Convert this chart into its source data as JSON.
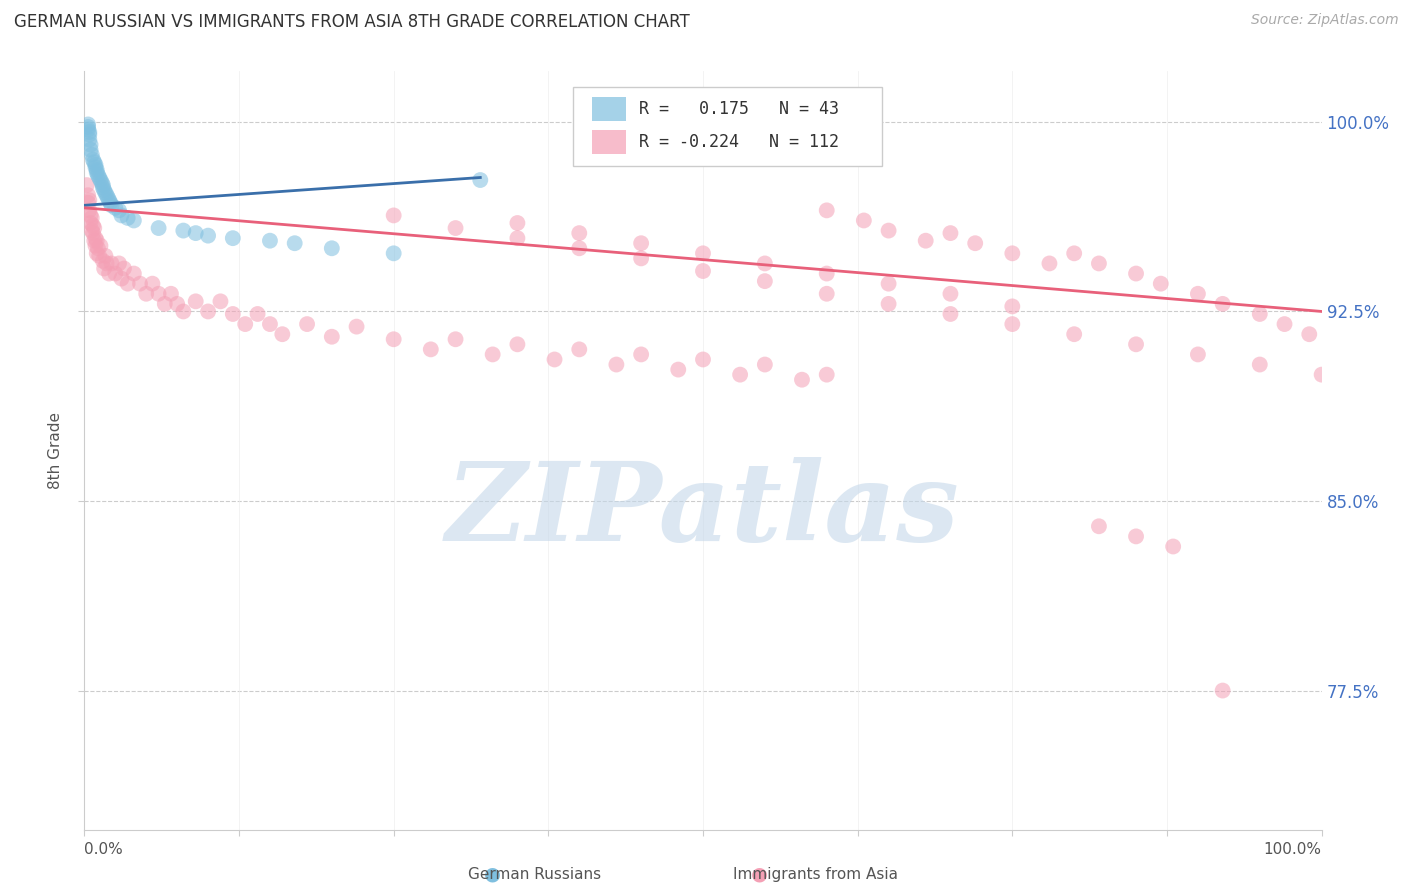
{
  "title": "GERMAN RUSSIAN VS IMMIGRANTS FROM ASIA 8TH GRADE CORRELATION CHART",
  "source": "Source: ZipAtlas.com",
  "ylabel": "8th Grade",
  "ytick_labels": [
    "77.5%",
    "85.0%",
    "92.5%",
    "100.0%"
  ],
  "ytick_values": [
    0.775,
    0.85,
    0.925,
    1.0
  ],
  "xmin": 0.0,
  "xmax": 1.0,
  "ymin": 0.72,
  "ymax": 1.02,
  "blue_color": "#7fbfdf",
  "pink_color": "#f4a0b5",
  "blue_line_color": "#3a6faa",
  "pink_line_color": "#e8607a",
  "blue_N": 43,
  "pink_N": 112,
  "blue_R": 0.175,
  "pink_R": -0.224,
  "watermark_text": "ZIPatlas",
  "watermark_color": "#c5d8ea",
  "legend_label_blue": "German Russians",
  "legend_label_pink": "Immigrants from Asia",
  "blue_line_x": [
    0.0,
    0.32
  ],
  "blue_line_y": [
    0.967,
    0.978
  ],
  "pink_line_x": [
    0.0,
    1.0
  ],
  "pink_line_y": [
    0.966,
    0.925
  ],
  "blue_x": [
    0.003,
    0.003,
    0.003,
    0.004,
    0.004,
    0.004,
    0.005,
    0.005,
    0.006,
    0.007,
    0.008,
    0.009,
    0.009,
    0.01,
    0.01,
    0.011,
    0.012,
    0.013,
    0.014,
    0.015,
    0.015,
    0.016,
    0.017,
    0.018,
    0.019,
    0.02,
    0.021,
    0.022,
    0.025,
    0.028,
    0.03,
    0.035,
    0.04,
    0.06,
    0.08,
    0.09,
    0.1,
    0.12,
    0.15,
    0.17,
    0.2,
    0.25,
    0.32
  ],
  "blue_y": [
    0.999,
    0.998,
    0.997,
    0.996,
    0.995,
    0.993,
    0.991,
    0.989,
    0.987,
    0.985,
    0.984,
    0.983,
    0.982,
    0.981,
    0.98,
    0.979,
    0.978,
    0.977,
    0.976,
    0.975,
    0.974,
    0.973,
    0.972,
    0.971,
    0.97,
    0.969,
    0.968,
    0.967,
    0.966,
    0.965,
    0.963,
    0.962,
    0.961,
    0.958,
    0.957,
    0.956,
    0.955,
    0.954,
    0.953,
    0.952,
    0.95,
    0.948,
    0.977
  ],
  "pink_x": [
    0.002,
    0.003,
    0.003,
    0.004,
    0.004,
    0.005,
    0.005,
    0.006,
    0.006,
    0.007,
    0.007,
    0.008,
    0.008,
    0.009,
    0.009,
    0.01,
    0.01,
    0.011,
    0.012,
    0.013,
    0.015,
    0.016,
    0.017,
    0.018,
    0.02,
    0.022,
    0.025,
    0.028,
    0.03,
    0.032,
    0.035,
    0.04,
    0.045,
    0.05,
    0.055,
    0.06,
    0.065,
    0.07,
    0.075,
    0.08,
    0.09,
    0.1,
    0.11,
    0.12,
    0.13,
    0.14,
    0.15,
    0.16,
    0.18,
    0.2,
    0.22,
    0.25,
    0.28,
    0.3,
    0.33,
    0.35,
    0.38,
    0.4,
    0.43,
    0.45,
    0.48,
    0.5,
    0.53,
    0.55,
    0.58,
    0.6,
    0.63,
    0.65,
    0.68,
    0.7,
    0.72,
    0.75,
    0.78,
    0.8,
    0.82,
    0.85,
    0.87,
    0.9,
    0.92,
    0.95,
    0.97,
    0.99,
    0.35,
    0.4,
    0.45,
    0.5,
    0.55,
    0.6,
    0.65,
    0.7,
    0.75,
    0.6,
    0.25,
    0.3,
    0.35,
    0.4,
    0.45,
    0.5,
    0.55,
    0.6,
    0.65,
    0.7,
    0.75,
    0.8,
    0.85,
    0.9,
    0.95,
    1.0,
    0.82,
    0.85,
    0.88,
    0.92
  ],
  "pink_y": [
    0.975,
    0.971,
    0.968,
    0.965,
    0.969,
    0.963,
    0.96,
    0.957,
    0.962,
    0.959,
    0.956,
    0.953,
    0.958,
    0.954,
    0.951,
    0.948,
    0.953,
    0.95,
    0.947,
    0.951,
    0.945,
    0.942,
    0.947,
    0.944,
    0.94,
    0.944,
    0.94,
    0.944,
    0.938,
    0.942,
    0.936,
    0.94,
    0.936,
    0.932,
    0.936,
    0.932,
    0.928,
    0.932,
    0.928,
    0.925,
    0.929,
    0.925,
    0.929,
    0.924,
    0.92,
    0.924,
    0.92,
    0.916,
    0.92,
    0.915,
    0.919,
    0.914,
    0.91,
    0.914,
    0.908,
    0.912,
    0.906,
    0.91,
    0.904,
    0.908,
    0.902,
    0.906,
    0.9,
    0.904,
    0.898,
    0.965,
    0.961,
    0.957,
    0.953,
    0.956,
    0.952,
    0.948,
    0.944,
    0.948,
    0.944,
    0.94,
    0.936,
    0.932,
    0.928,
    0.924,
    0.92,
    0.916,
    0.96,
    0.956,
    0.952,
    0.948,
    0.944,
    0.94,
    0.936,
    0.932,
    0.927,
    0.9,
    0.963,
    0.958,
    0.954,
    0.95,
    0.946,
    0.941,
    0.937,
    0.932,
    0.928,
    0.924,
    0.92,
    0.916,
    0.912,
    0.908,
    0.904,
    0.9,
    0.84,
    0.836,
    0.832,
    0.775
  ]
}
